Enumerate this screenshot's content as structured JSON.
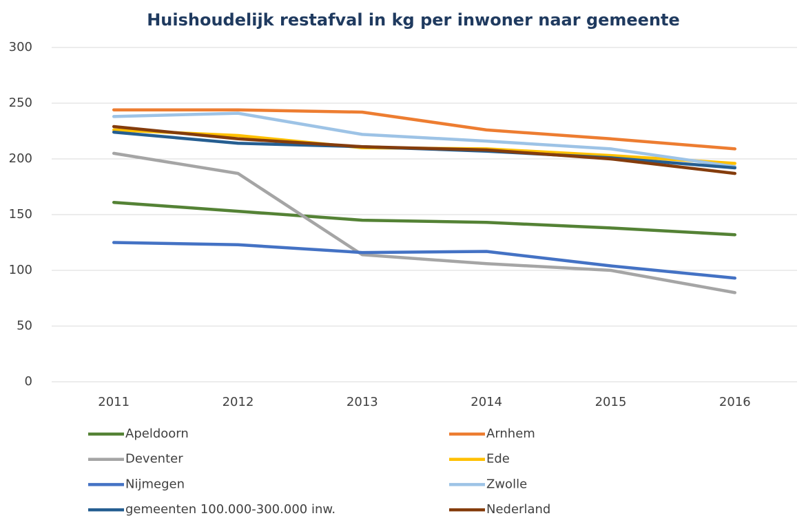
{
  "chart_data": {
    "type": "line",
    "title": "Huishoudelijk  restafval in kg per inwoner naar gemeente",
    "categories": [
      "2011",
      "2012",
      "2013",
      "2014",
      "2015",
      "2016"
    ],
    "series": [
      {
        "name": "Apeldoorn",
        "color": "#548235",
        "values": [
          161,
          153,
          145,
          143,
          138,
          132
        ]
      },
      {
        "name": "Arnhem",
        "color": "#ed7d31",
        "values": [
          244,
          244,
          242,
          226,
          218,
          209
        ]
      },
      {
        "name": "Deventer",
        "color": "#a5a5a5",
        "values": [
          205,
          187,
          114,
          106,
          100,
          80
        ]
      },
      {
        "name": "Ede",
        "color": "#ffc000",
        "values": [
          226,
          221,
          210,
          209,
          203,
          196
        ]
      },
      {
        "name": "Nijmegen",
        "color": "#4472c4",
        "values": [
          125,
          123,
          116,
          117,
          104,
          93
        ]
      },
      {
        "name": "Zwolle",
        "color": "#9dc3e6",
        "values": [
          238,
          241,
          222,
          216,
          209,
          193
        ]
      },
      {
        "name": "gemeenten 100.000-300.000 inw.",
        "color": "#255e91",
        "values": [
          224,
          214,
          211,
          207,
          201,
          192
        ]
      },
      {
        "name": "Nederland",
        "color": "#843c0c",
        "values": [
          229,
          218,
          211,
          208,
          200,
          187
        ]
      }
    ],
    "ylim": [
      0,
      300
    ],
    "yticks": [
      0,
      50,
      100,
      150,
      200,
      250,
      300
    ],
    "grid": true
  }
}
